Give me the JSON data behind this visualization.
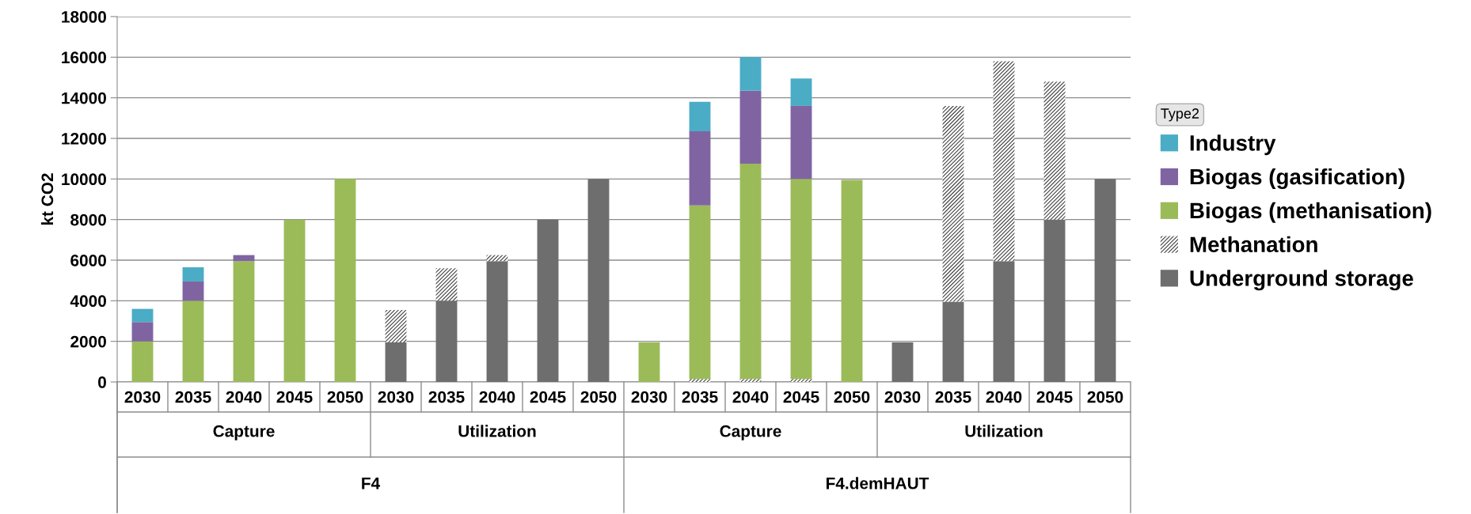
{
  "chart_data": {
    "type": "bar",
    "stacked": true,
    "ylabel": "kt CO2",
    "legend_title": "Type2",
    "legend": "right",
    "grid": "y",
    "ylim": [
      0,
      18000
    ],
    "yticks": [
      0,
      2000,
      4000,
      6000,
      8000,
      10000,
      12000,
      14000,
      16000,
      18000
    ],
    "categories": [
      "2030",
      "2035",
      "2040",
      "2045",
      "2050",
      "2030",
      "2035",
      "2040",
      "2045",
      "2050",
      "2030",
      "2035",
      "2040",
      "2045",
      "2050",
      "2030",
      "2035",
      "2040",
      "2045",
      "2050"
    ],
    "annotations": [
      "Capture",
      "Utilization",
      "Capture",
      "Utilization",
      "F4",
      "F4.demHAUT"
    ],
    "series": [
      {
        "name": "Underground storage",
        "color": "#6e6e6e",
        "values": [
          null,
          null,
          null,
          null,
          null,
          1950,
          4000,
          5950,
          8000,
          10000,
          null,
          null,
          null,
          null,
          null,
          1950,
          3950,
          5950,
          8000,
          10000
        ]
      },
      {
        "name": "Methanation",
        "color": "#404040",
        "values": [
          null,
          null,
          null,
          null,
          null,
          1600,
          1600,
          300,
          null,
          null,
          null,
          150,
          150,
          150,
          null,
          null,
          9650,
          9850,
          6800,
          null
        ]
      },
      {
        "name": "Biogas (methanisation)",
        "color": "#9bbb59",
        "values": [
          2000,
          4000,
          5950,
          8000,
          10000,
          null,
          null,
          null,
          null,
          null,
          1950,
          8550,
          10600,
          9850,
          9950,
          null,
          null,
          null,
          null,
          null
        ]
      },
      {
        "name": "Biogas (gasification)",
        "color": "#8064a2",
        "values": [
          950,
          950,
          300,
          null,
          null,
          null,
          null,
          null,
          null,
          null,
          null,
          3650,
          3600,
          3600,
          null,
          null,
          null,
          null,
          null,
          null
        ]
      },
      {
        "name": "Industry",
        "color": "#4bacc6",
        "values": [
          650,
          700,
          null,
          null,
          null,
          null,
          null,
          null,
          null,
          null,
          null,
          1450,
          1650,
          1350,
          null,
          null,
          null,
          null,
          null,
          null
        ]
      }
    ]
  }
}
